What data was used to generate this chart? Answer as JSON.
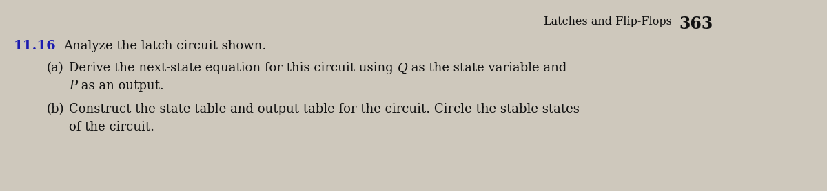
{
  "background_color": "#cec8bc",
  "header_text": "Latches and Flip-Flops",
  "header_number": "363",
  "problem_number": "11.16",
  "line1": "Analyze the latch circuit shown.",
  "part_a_label": "(a)",
  "part_a_line1": "Derive the next-state equation for this circuit using ",
  "part_a_Q": "Q",
  "part_a_line1b": " as the state variable and",
  "part_a_P": "P",
  "part_a_line2b": " as an output.",
  "part_b_label": "(b)",
  "part_b_line1": "Construct the state table and output table for the circuit. Circle the stable states",
  "part_b_line2": "of the circuit.",
  "font_size_header": 11.5,
  "font_size_number": 17,
  "font_size_problem": 13,
  "font_size_problem_num": 14,
  "text_color": "#111111",
  "header_color": "#111111",
  "problem_number_color": "#1c1cb0"
}
